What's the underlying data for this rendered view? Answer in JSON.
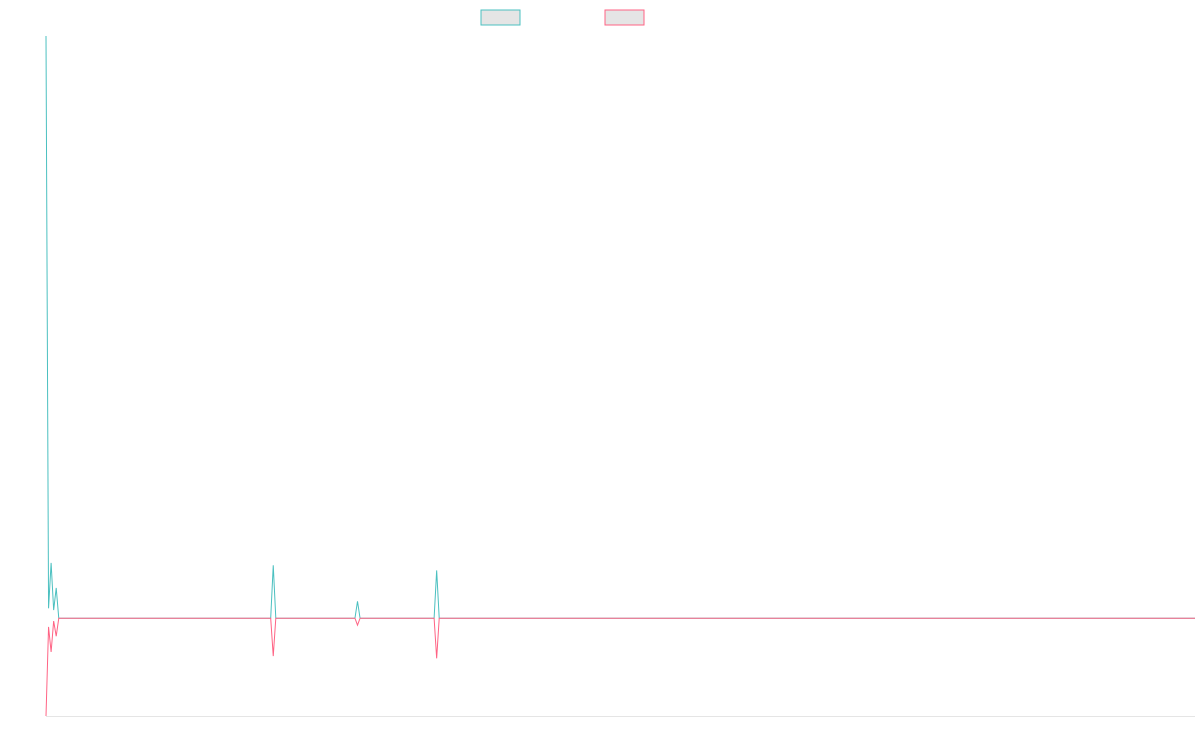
{
  "chart_data": {
    "type": "line",
    "title": "",
    "xlabel": "",
    "ylabel": "",
    "xlim": [
      0,
      450
    ],
    "ylim": [
      -16.8,
      100
    ],
    "grid": false,
    "legend": "top",
    "series": [
      {
        "color": "#4bc0c0",
        "points": [
          [
            0,
            100
          ],
          [
            1,
            1.7
          ],
          [
            2,
            9.5
          ],
          [
            3,
            1.4
          ],
          [
            4,
            5.2
          ],
          [
            5,
            0
          ],
          [
            88,
            0
          ],
          [
            89,
            9.1
          ],
          [
            90,
            0
          ],
          [
            121,
            0
          ],
          [
            122,
            2.9
          ],
          [
            123,
            0
          ],
          [
            152,
            0
          ],
          [
            153,
            8.2
          ],
          [
            154,
            0
          ],
          [
            450,
            0
          ]
        ]
      },
      {
        "color": "#ff6384",
        "points": [
          [
            0,
            -16.8
          ],
          [
            1,
            -1.5
          ],
          [
            2,
            -5.8
          ],
          [
            3,
            -0.5
          ],
          [
            4,
            -3.1
          ],
          [
            5,
            0
          ],
          [
            88,
            0
          ],
          [
            89,
            -6.5
          ],
          [
            90,
            0
          ],
          [
            121,
            0
          ],
          [
            122,
            -1.2
          ],
          [
            123,
            0
          ],
          [
            152,
            0
          ],
          [
            153,
            -6.9
          ],
          [
            154,
            0
          ],
          [
            450,
            0
          ]
        ]
      }
    ]
  }
}
